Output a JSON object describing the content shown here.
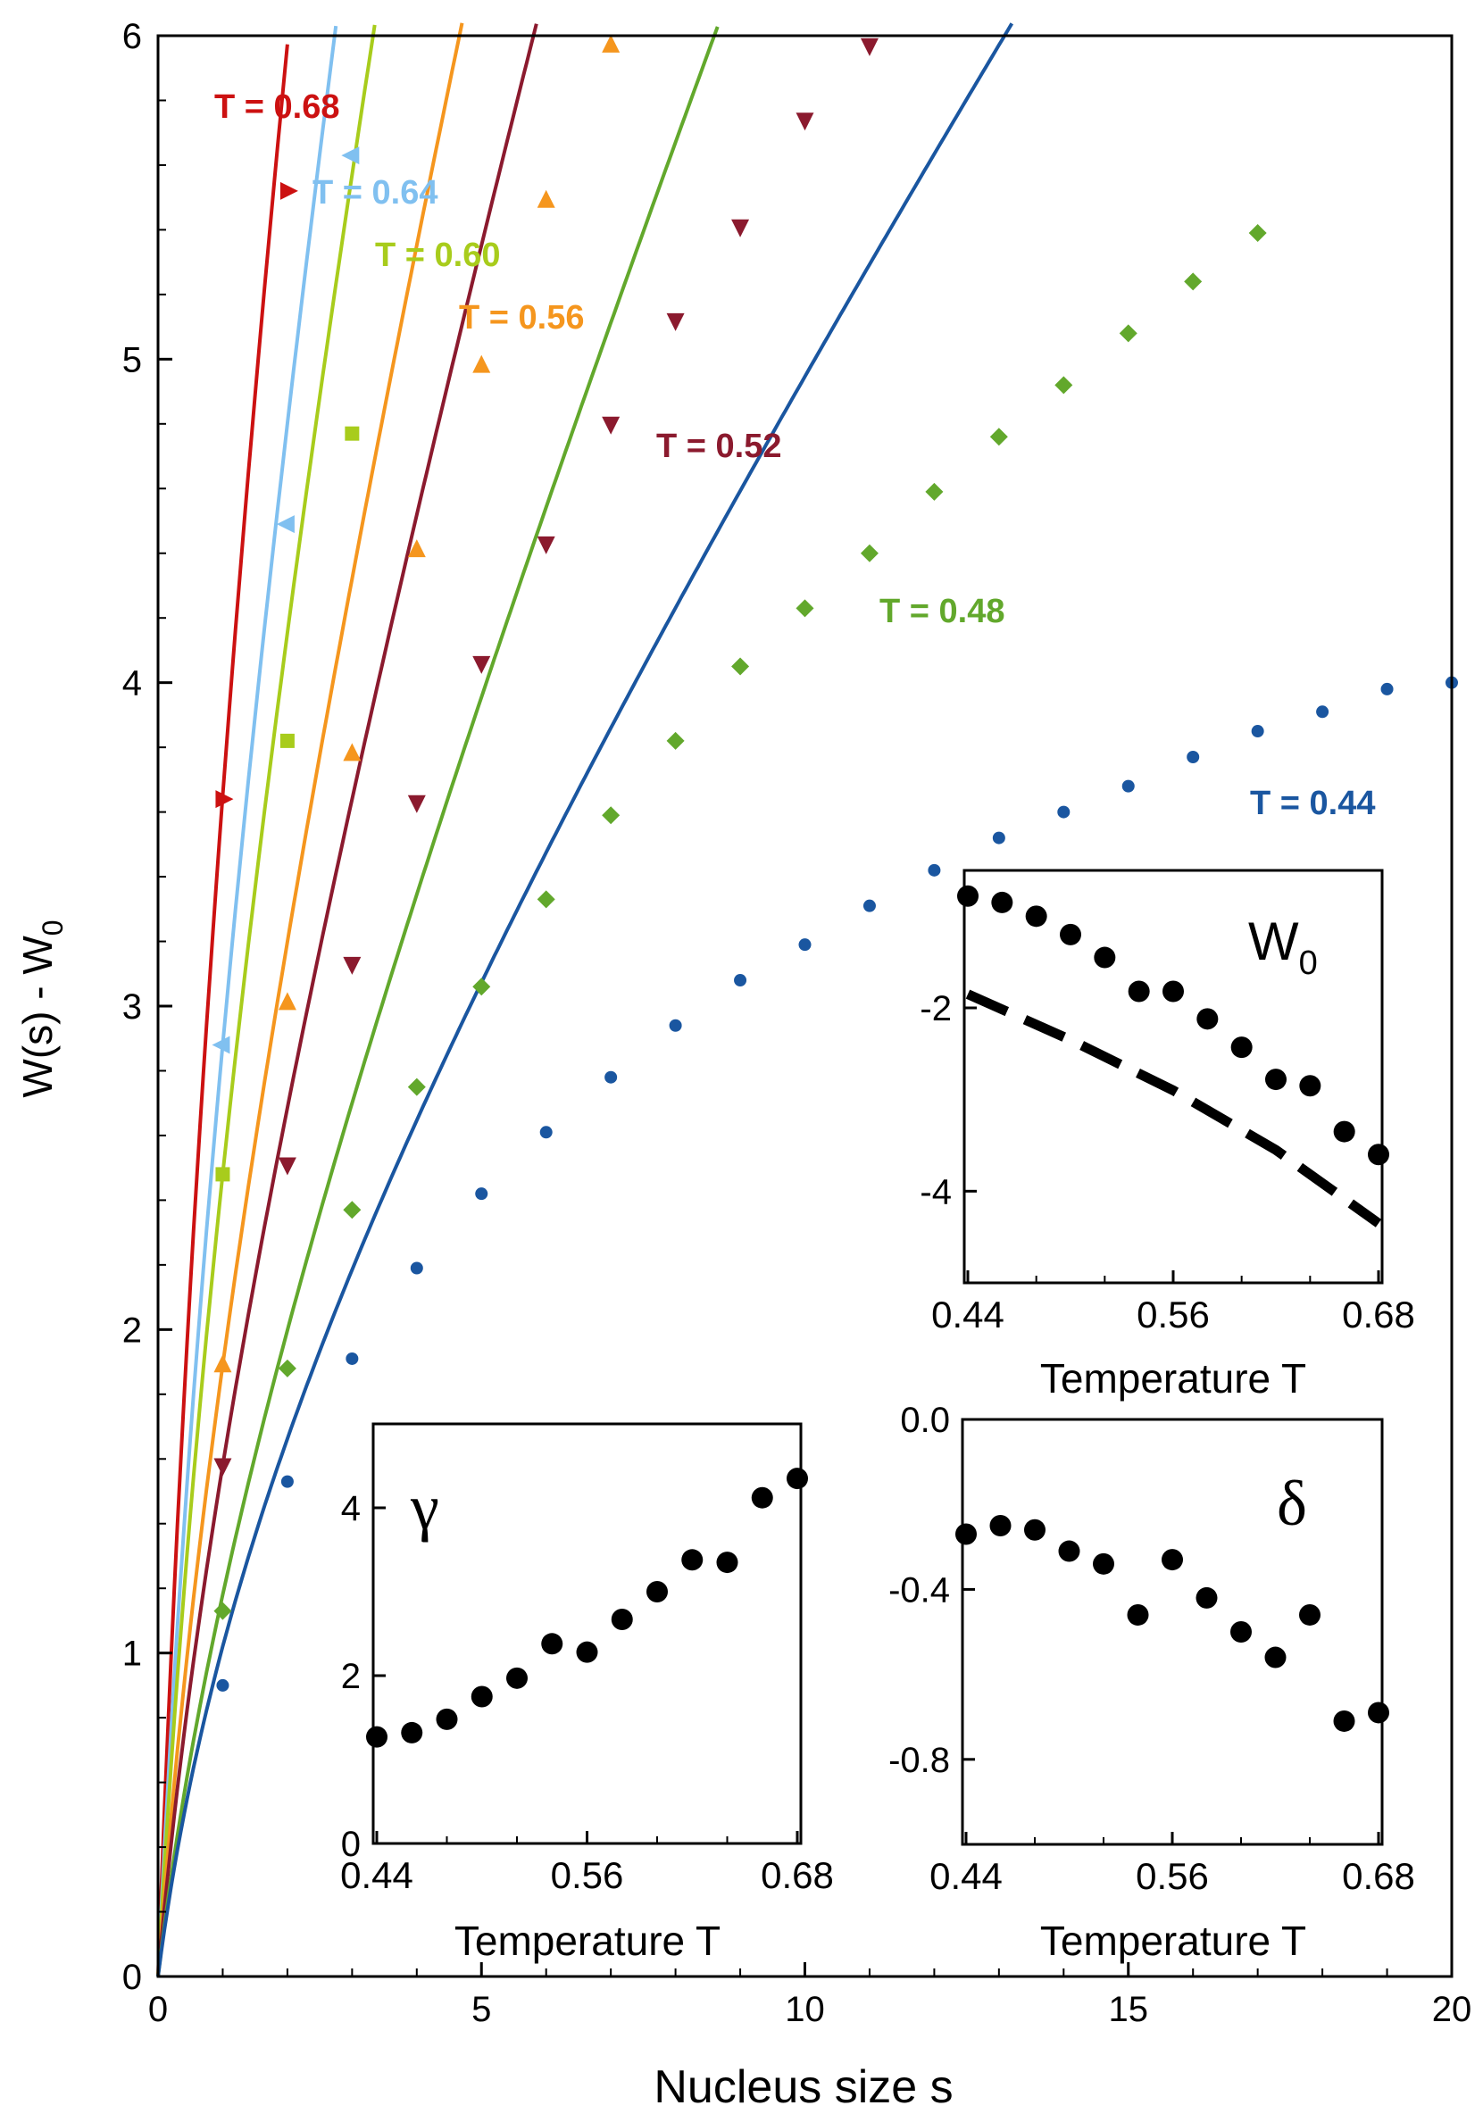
{
  "chart_data": [
    {
      "type": "scatter",
      "id": "main",
      "xlabel": "Nucleus size  s",
      "ylabel": "W(s) - W",
      "ylabel_sub": "0",
      "xlim": [
        0,
        20
      ],
      "ylim": [
        0,
        6
      ],
      "xticks": [
        0,
        5,
        10,
        15,
        20
      ],
      "yticks": [
        0,
        1,
        2,
        3,
        4,
        5,
        6
      ],
      "series": [
        {
          "name": "T = 0.68",
          "color": "#cc1111",
          "marker": "triangle-right",
          "points": [
            [
              1,
              3.64
            ],
            [
              2,
              5.52
            ]
          ],
          "fit_a": 1.05,
          "fit_b": 2.6
        },
        {
          "name": "T = 0.64",
          "color": "#80c0f0",
          "marker": "triangle-left",
          "points": [
            [
              1,
              2.88
            ],
            [
              2,
              4.49
            ],
            [
              3,
              5.63
            ]
          ],
          "fit_a": 1.0,
          "fit_b": 1.88
        },
        {
          "name": "T = 0.60",
          "color": "#a8cc1c",
          "marker": "square",
          "points": [
            [
              1,
              2.48
            ],
            [
              2,
              3.82
            ],
            [
              3,
              4.77
            ]
          ],
          "fit_a": 0.9,
          "fit_b": 1.58
        },
        {
          "name": "T = 0.56",
          "color": "#f5961e",
          "marker": "triangle-up",
          "points": [
            [
              1,
              1.89
            ],
            [
              2,
              3.01
            ],
            [
              3,
              3.78
            ],
            [
              4,
              4.41
            ],
            [
              5,
              4.98
            ],
            [
              6,
              5.49
            ],
            [
              7,
              5.97
            ]
          ],
          "fit_a": 0.75,
          "fit_b": 1.14
        },
        {
          "name": "T = 0.52",
          "color": "#8b1a2e",
          "marker": "triangle-down",
          "points": [
            [
              1,
              1.58
            ],
            [
              2,
              2.51
            ],
            [
              3,
              3.13
            ],
            [
              4,
              3.63
            ],
            [
              5,
              4.06
            ],
            [
              6,
              4.43
            ],
            [
              7,
              4.8
            ],
            [
              8,
              5.12
            ],
            [
              9,
              5.41
            ],
            [
              10,
              5.74
            ],
            [
              11,
              5.97
            ]
          ],
          "fit_a": 0.65,
          "fit_b": 0.93
        },
        {
          "name": "T = 0.48",
          "color": "#62a82c",
          "marker": "diamond",
          "points": [
            [
              1,
              1.13
            ],
            [
              2,
              1.88
            ],
            [
              3,
              2.37
            ],
            [
              4,
              2.75
            ],
            [
              5,
              3.06
            ],
            [
              6,
              3.33
            ],
            [
              7,
              3.59
            ],
            [
              8,
              3.82
            ],
            [
              9,
              4.05
            ],
            [
              10,
              4.23
            ],
            [
              11,
              4.4
            ],
            [
              12,
              4.59
            ],
            [
              13,
              4.76
            ],
            [
              14,
              4.92
            ],
            [
              15,
              5.08
            ],
            [
              16,
              5.24
            ],
            [
              17,
              5.39
            ]
          ],
          "fit_a": 0.47,
          "fit_b": 0.71
        },
        {
          "name": "T = 0.44",
          "color": "#1a56a0",
          "marker": "circle",
          "points": [
            [
              1,
              0.9
            ],
            [
              2,
              1.53
            ],
            [
              3,
              1.91
            ],
            [
              4,
              2.19
            ],
            [
              5,
              2.42
            ],
            [
              6,
              2.61
            ],
            [
              7,
              2.78
            ],
            [
              8,
              2.94
            ],
            [
              9,
              3.08
            ],
            [
              10,
              3.19
            ],
            [
              11,
              3.31
            ],
            [
              12,
              3.42
            ],
            [
              13,
              3.52
            ],
            [
              14,
              3.6
            ],
            [
              15,
              3.68
            ],
            [
              16,
              3.77
            ],
            [
              17,
              3.85
            ],
            [
              18,
              3.91
            ],
            [
              19,
              3.98
            ],
            [
              20,
              4.0
            ]
          ],
          "fit_a": 0.28,
          "fit_b": 0.74
        }
      ]
    },
    {
      "type": "scatter",
      "id": "inset_w0",
      "label": "W",
      "label_sub": "0",
      "xlabel": "Temperature T",
      "xlim": [
        0.44,
        0.68
      ],
      "ylim": [
        -5,
        -0.5
      ],
      "xticks": [
        0.44,
        0.56,
        0.68
      ],
      "yticks": [
        -2,
        -4
      ],
      "x": [
        0.44,
        0.46,
        0.48,
        0.5,
        0.52,
        0.54,
        0.56,
        0.58,
        0.6,
        0.62,
        0.64,
        0.66,
        0.68
      ],
      "values": [
        -0.78,
        -0.85,
        -1.0,
        -1.2,
        -1.45,
        -1.82,
        -1.82,
        -2.12,
        -2.43,
        -2.78,
        -2.85,
        -3.35,
        -3.6
      ],
      "dashed_line": {
        "x": [
          0.44,
          0.5,
          0.56,
          0.62,
          0.68
        ],
        "y": [
          -1.85,
          -2.35,
          -2.9,
          -3.55,
          -4.35
        ]
      }
    },
    {
      "type": "scatter",
      "id": "inset_gamma",
      "label": "γ",
      "xlabel": "Temperature T",
      "xlim": [
        0.44,
        0.68
      ],
      "ylim": [
        0,
        5
      ],
      "xticks": [
        0.44,
        0.56,
        0.68
      ],
      "yticks": [
        0,
        2,
        4
      ],
      "x": [
        0.44,
        0.46,
        0.48,
        0.5,
        0.52,
        0.54,
        0.56,
        0.58,
        0.6,
        0.62,
        0.64,
        0.66,
        0.68
      ],
      "values": [
        1.27,
        1.32,
        1.48,
        1.75,
        1.97,
        2.38,
        2.28,
        2.67,
        3.0,
        3.38,
        3.35,
        4.12,
        4.35
      ]
    },
    {
      "type": "scatter",
      "id": "inset_delta",
      "label": "δ",
      "xlabel": "Temperature T",
      "xlim": [
        0.44,
        0.68
      ],
      "ylim": [
        -1.0,
        0.0
      ],
      "xticks": [
        0.44,
        0.56,
        0.68
      ],
      "yticks": [
        0.0,
        -0.4,
        -0.8
      ],
      "ytick_labels": [
        "0.0",
        "-0.4",
        "-0.8"
      ],
      "x": [
        0.44,
        0.46,
        0.48,
        0.5,
        0.52,
        0.54,
        0.56,
        0.58,
        0.6,
        0.62,
        0.64,
        0.66,
        0.68
      ],
      "values": [
        -0.27,
        -0.25,
        -0.26,
        -0.31,
        -0.34,
        -0.46,
        -0.33,
        -0.42,
        -0.5,
        -0.56,
        -0.46,
        -0.71,
        -0.69
      ]
    }
  ],
  "labels": {
    "t068": "T = 0.68",
    "t064": "T = 0.64",
    "t060": "T = 0.60",
    "t056": "T = 0.56",
    "t052": "T = 0.52",
    "t048": "T = 0.48",
    "t044": "T = 0.44"
  }
}
